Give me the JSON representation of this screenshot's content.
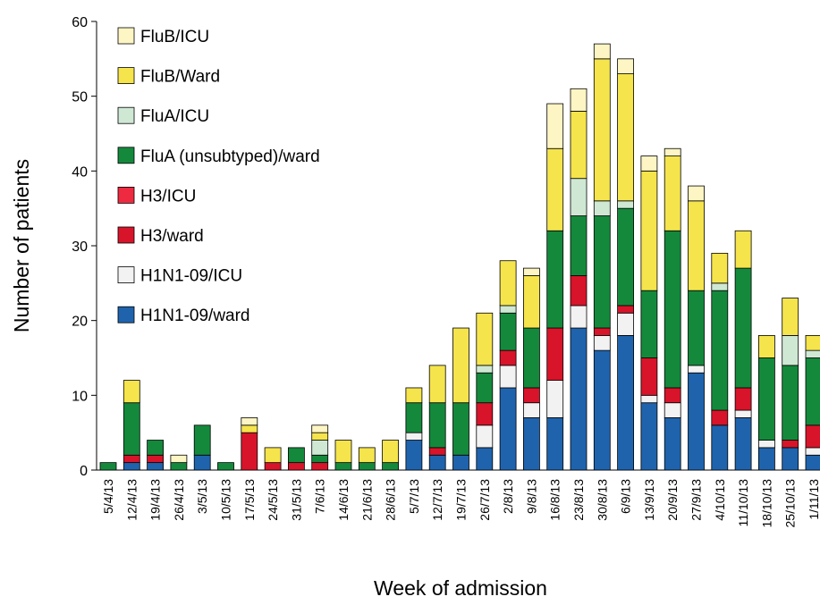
{
  "chart_data": {
    "type": "stacked_bar",
    "x_label": "Week of admission",
    "y_label": "Number of patients",
    "categories": [
      "5/4/13",
      "12/4/13",
      "19/4/13",
      "26/4/13",
      "3/5/13",
      "10/5/13",
      "17/5/13",
      "24/5/13",
      "31/5/13",
      "7/6/13",
      "14/6/13",
      "21/6/13",
      "28/6/13",
      "5/7/13",
      "12/7/13",
      "19/7/13",
      "26/7/13",
      "2/8/13",
      "9/8/13",
      "16/8/13",
      "23/8/13",
      "30/8/13",
      "6/9/13",
      "13/9/13",
      "20/9/13",
      "27/9/13",
      "4/10/13",
      "11/10/13",
      "18/10/13",
      "25/10/13",
      "1/11/13"
    ],
    "series": [
      {
        "name": "H1N1-09/ward",
        "color": "#1f63ad",
        "values": [
          0,
          1,
          1,
          0,
          2,
          0,
          0,
          0,
          0,
          0,
          0,
          0,
          0,
          4,
          2,
          2,
          3,
          11,
          7,
          7,
          19,
          16,
          18,
          9,
          7,
          13,
          6,
          7,
          3,
          3,
          2
        ]
      },
      {
        "name": "H1N1-09/ICU",
        "color": "#f2f2f2",
        "values": [
          0,
          0,
          0,
          0,
          0,
          0,
          0,
          0,
          0,
          0,
          0,
          0,
          0,
          1,
          0,
          0,
          3,
          3,
          2,
          5,
          3,
          2,
          3,
          1,
          2,
          1,
          0,
          1,
          1,
          0,
          1
        ]
      },
      {
        "name": "H3/ward",
        "color": "#d8142a",
        "values": [
          0,
          1,
          1,
          0,
          0,
          0,
          5,
          1,
          1,
          1,
          0,
          0,
          0,
          0,
          1,
          0,
          3,
          2,
          2,
          7,
          4,
          1,
          1,
          5,
          2,
          0,
          2,
          3,
          0,
          1,
          3
        ]
      },
      {
        "name": "H3/ICU",
        "color": "#ee2a40",
        "values": [
          0,
          0,
          0,
          0,
          0,
          0,
          0,
          0,
          0,
          0,
          0,
          0,
          0,
          0,
          0,
          0,
          0,
          0,
          0,
          0,
          0,
          0,
          0,
          0,
          0,
          0,
          0,
          0,
          0,
          0,
          0
        ]
      },
      {
        "name": "FluA (unsubtyped)/ward",
        "color": "#14893c",
        "values": [
          1,
          7,
          2,
          1,
          4,
          1,
          0,
          0,
          2,
          1,
          1,
          1,
          1,
          4,
          6,
          7,
          4,
          5,
          8,
          13,
          8,
          15,
          13,
          9,
          21,
          10,
          16,
          16,
          11,
          10,
          9
        ]
      },
      {
        "name": "FluA/ICU",
        "color": "#cfe8d4",
        "values": [
          0,
          0,
          0,
          0,
          0,
          0,
          0,
          0,
          0,
          2,
          0,
          0,
          0,
          0,
          0,
          0,
          1,
          1,
          0,
          0,
          5,
          2,
          1,
          0,
          0,
          0,
          1,
          0,
          0,
          4,
          1
        ]
      },
      {
        "name": "FluB/Ward",
        "color": "#f5e44c",
        "values": [
          0,
          3,
          0,
          0,
          0,
          0,
          1,
          2,
          0,
          1,
          3,
          2,
          3,
          2,
          5,
          10,
          7,
          6,
          7,
          11,
          9,
          19,
          17,
          16,
          10,
          12,
          4,
          5,
          3,
          5,
          2
        ]
      },
      {
        "name": "FluB/ICU",
        "color": "#fdf5c4",
        "values": [
          0,
          0,
          0,
          1,
          0,
          0,
          1,
          0,
          0,
          1,
          0,
          0,
          0,
          0,
          0,
          0,
          0,
          0,
          1,
          6,
          3,
          2,
          2,
          2,
          1,
          2,
          0,
          0,
          0,
          0,
          0
        ]
      }
    ],
    "ylim": [
      0,
      60
    ],
    "yticks": [
      0,
      10,
      20,
      30,
      40,
      50,
      60
    ],
    "legend": "upper left",
    "grid": false
  }
}
